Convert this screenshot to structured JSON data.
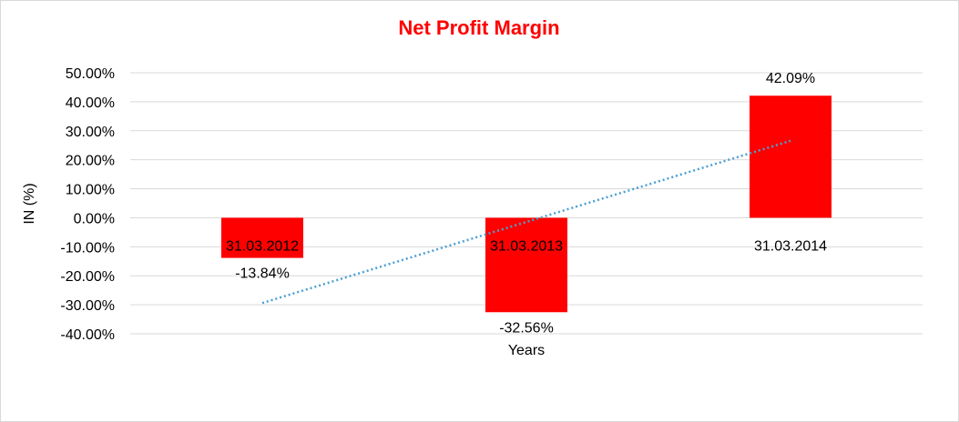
{
  "chart_data": {
    "type": "bar",
    "title": "Net Profit Margin",
    "xlabel": "Years",
    "ylabel": "IN (%)",
    "categories": [
      "31.03.2012",
      "31.03.2013",
      "31.03.2014"
    ],
    "values": [
      -13.84,
      -32.56,
      42.09
    ],
    "value_labels": [
      "-13.84%",
      "-32.56%",
      "42.09%"
    ],
    "ylim": [
      -40,
      50
    ],
    "yticks": [
      50,
      40,
      30,
      20,
      10,
      0,
      -10,
      -20,
      -30,
      -40
    ],
    "ytick_labels": [
      "50.00%",
      "40.00%",
      "30.00%",
      "20.00%",
      "10.00%",
      "0.00%",
      "-10.00%",
      "-20.00%",
      "-30.00%",
      "-40.00%"
    ],
    "grid": true,
    "trendline": {
      "type": "linear",
      "style": "dotted"
    },
    "colors": {
      "bar": "#ff0000",
      "title": "#ff0000",
      "trendline": "#4a9fd4",
      "grid": "#d9d9d9"
    }
  }
}
